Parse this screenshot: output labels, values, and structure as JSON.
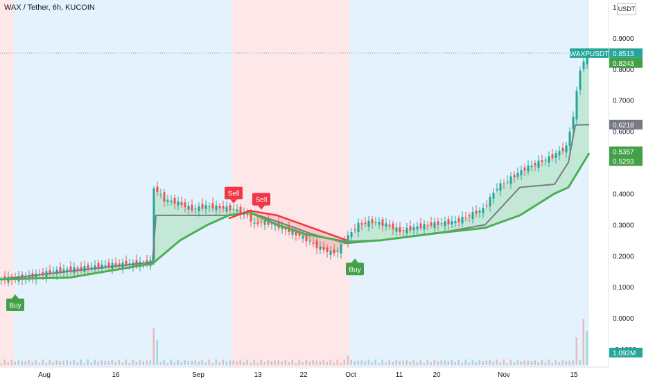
{
  "header": {
    "title": "WAX / Tether, 6h, KUCOIN",
    "currency": "USDT"
  },
  "colors": {
    "up": "#26a69a",
    "down": "#ef5350",
    "blue_bg": "#e3f2fd",
    "red_bg": "#fde7e9",
    "ma_fast": "#4caf50",
    "ma_slow": "#787b86",
    "trend_red": "#f23645",
    "fill_green": "#b7e4c7",
    "fill_red": "#f7c1c1"
  },
  "chart_data": {
    "type": "candlestick",
    "symbol": "WAXPUSDT",
    "timeframe": "6h",
    "ylim": [
      -0.1,
      1.0
    ],
    "y_ticks": [
      "1.0000",
      "0.9000",
      "0.8000",
      "0.7000",
      "0.6000",
      "0.5000",
      "0.4000",
      "0.3000",
      "0.2000",
      "0.1000",
      "0.0000",
      "-0.1000"
    ],
    "x_ticks": [
      "Aug",
      "16",
      "Sep",
      "13",
      "22",
      "Oct",
      "11",
      "20",
      "Nov",
      "15"
    ],
    "close_path": [
      [
        0,
        0.125
      ],
      [
        8,
        0.13
      ],
      [
        16,
        0.15
      ],
      [
        24,
        0.16
      ],
      [
        32,
        0.17
      ],
      [
        40,
        0.175
      ],
      [
        44,
        0.18
      ],
      [
        45,
        0.42
      ],
      [
        48,
        0.38
      ],
      [
        52,
        0.37
      ],
      [
        56,
        0.35
      ],
      [
        60,
        0.36
      ],
      [
        64,
        0.355
      ],
      [
        68,
        0.35
      ],
      [
        72,
        0.33
      ],
      [
        74,
        0.3
      ],
      [
        76,
        0.31
      ],
      [
        80,
        0.3
      ],
      [
        84,
        0.28
      ],
      [
        88,
        0.26
      ],
      [
        92,
        0.23
      ],
      [
        96,
        0.21
      ],
      [
        98,
        0.215
      ],
      [
        100,
        0.25
      ],
      [
        104,
        0.3
      ],
      [
        108,
        0.31
      ],
      [
        112,
        0.3
      ],
      [
        116,
        0.28
      ],
      [
        120,
        0.29
      ],
      [
        124,
        0.3
      ],
      [
        128,
        0.305
      ],
      [
        132,
        0.31
      ],
      [
        136,
        0.33
      ],
      [
        140,
        0.35
      ],
      [
        144,
        0.42
      ],
      [
        148,
        0.45
      ],
      [
        152,
        0.48
      ],
      [
        156,
        0.5
      ],
      [
        160,
        0.52
      ],
      [
        164,
        0.55
      ],
      [
        166,
        0.65
      ],
      [
        168,
        0.8
      ],
      [
        170,
        0.85
      ]
    ],
    "ma_fast": [
      [
        0,
        0.125
      ],
      [
        20,
        0.13
      ],
      [
        44,
        0.175
      ],
      [
        52,
        0.25
      ],
      [
        60,
        0.3
      ],
      [
        66,
        0.33
      ],
      [
        72,
        0.34
      ],
      [
        80,
        0.3
      ],
      [
        88,
        0.27
      ],
      [
        100,
        0.245
      ],
      [
        110,
        0.25
      ],
      [
        124,
        0.27
      ],
      [
        140,
        0.29
      ],
      [
        150,
        0.33
      ],
      [
        160,
        0.4
      ],
      [
        164,
        0.42
      ],
      [
        170,
        0.53
      ]
    ],
    "ma_slow": [
      [
        0,
        0.125
      ],
      [
        44,
        0.18
      ],
      [
        45,
        0.33
      ],
      [
        66,
        0.33
      ],
      [
        72,
        0.34
      ],
      [
        80,
        0.31
      ],
      [
        90,
        0.27
      ],
      [
        100,
        0.24
      ],
      [
        110,
        0.25
      ],
      [
        130,
        0.28
      ],
      [
        140,
        0.3
      ],
      [
        150,
        0.42
      ],
      [
        160,
        0.43
      ],
      [
        164,
        0.5
      ],
      [
        166,
        0.62
      ],
      [
        170,
        0.6218
      ]
    ],
    "trend_red": [
      [
        66,
        0.32
      ],
      [
        72,
        0.345
      ],
      [
        80,
        0.33
      ],
      [
        90,
        0.29
      ],
      [
        100,
        0.25
      ]
    ],
    "background_regions": [
      {
        "from": 0,
        "to": 4,
        "color": "red"
      },
      {
        "from": 4,
        "to": 67,
        "color": "blue"
      },
      {
        "from": 67,
        "to": 101,
        "color": "red"
      },
      {
        "from": 101,
        "to": 170,
        "color": "blue"
      }
    ],
    "signals": [
      {
        "label": "Buy",
        "type": "buy",
        "index": 4,
        "price": 0.125
      },
      {
        "label": "Sell",
        "type": "sell",
        "index": 67,
        "price": 0.355
      },
      {
        "label": "Sell",
        "type": "sell",
        "index": 75,
        "price": 0.335
      },
      {
        "label": "Buy",
        "type": "buy",
        "index": 102,
        "price": 0.24
      }
    ],
    "price_labels": [
      {
        "text": "WAXPUSDT",
        "value": 0.8513,
        "style": "symbol"
      },
      {
        "text": "0.8513",
        "value": 0.8513,
        "style": "green"
      },
      {
        "text": "0.8243",
        "value": 0.8243,
        "style": "green"
      },
      {
        "text": "0.6218",
        "value": 0.6218,
        "style": "grey"
      },
      {
        "text": "0.5357",
        "value": 0.5357,
        "style": "green"
      },
      {
        "text": "0.5293",
        "value": 0.5293,
        "style": "green"
      }
    ],
    "volume_label": "1.092M",
    "volume_spikes": [
      [
        44,
        0.12
      ],
      [
        45,
        0.08
      ],
      [
        100,
        0.03
      ],
      [
        166,
        0.09
      ],
      [
        168,
        0.15
      ],
      [
        169,
        0.11
      ]
    ]
  }
}
